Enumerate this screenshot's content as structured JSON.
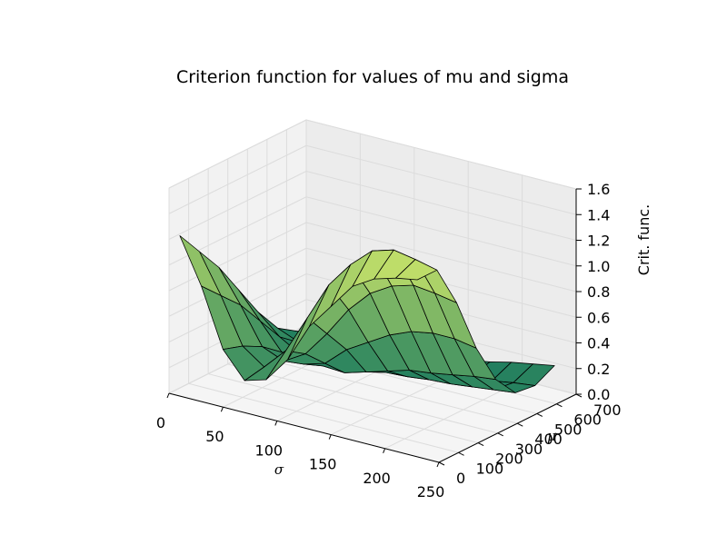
{
  "chart_data": {
    "type": "surface",
    "title": "Criterion function for values of mu and sigma",
    "xlabel": "σ",
    "ylabel": "μ",
    "zlabel": "Crit. func.",
    "xlim": [
      0,
      250
    ],
    "ylim": [
      0,
      700
    ],
    "zlim": [
      0,
      1.6
    ],
    "x_ticks": [
      "0",
      "50",
      "100",
      "150",
      "200",
      "250"
    ],
    "y_ticks": [
      "0",
      "100",
      "200",
      "300",
      "400",
      "500",
      "600",
      "700"
    ],
    "z_ticks": [
      "0.0",
      "0.2",
      "0.4",
      "0.6",
      "0.8",
      "1.0",
      "1.2",
      "1.4",
      "1.6"
    ],
    "grid": true,
    "colormap": "summer",
    "colormap_low": "#1a7a5e",
    "colormap_high": "#c6e26a",
    "edge_color": "#000000",
    "surface": {
      "sigma": [
        10,
        30,
        50,
        70,
        90,
        110,
        130,
        150,
        170,
        190,
        210,
        230
      ],
      "mu": [
        0,
        100,
        200,
        300,
        400,
        500,
        600,
        700
      ],
      "z": [
        [
          1.25,
          1.05,
          0.85,
          0.6,
          0.35,
          0.15,
          0.05,
          0.02
        ],
        [
          0.9,
          0.75,
          0.6,
          0.4,
          0.2,
          0.08,
          0.03,
          0.01
        ],
        [
          0.45,
          0.4,
          0.32,
          0.2,
          0.1,
          0.05,
          0.02,
          0.01
        ],
        [
          0.25,
          0.28,
          0.25,
          0.15,
          0.06,
          0.02,
          0.01,
          0.01
        ],
        [
          0.3,
          0.45,
          0.35,
          0.2,
          0.05,
          0.01,
          0.0,
          0.01
        ],
        [
          0.5,
          0.75,
          0.55,
          0.35,
          0.1,
          0.02,
          0.0,
          0.02
        ],
        [
          0.8,
          1.05,
          0.78,
          0.45,
          0.15,
          0.03,
          0.01,
          0.03
        ],
        [
          1.0,
          1.25,
          0.95,
          0.55,
          0.2,
          0.05,
          0.02,
          0.05
        ],
        [
          1.2,
          1.4,
          1.05,
          0.62,
          0.22,
          0.06,
          0.03,
          0.08
        ],
        [
          1.3,
          1.45,
          1.1,
          0.65,
          0.25,
          0.08,
          0.05,
          0.12
        ],
        [
          1.35,
          1.42,
          1.08,
          0.65,
          0.28,
          0.1,
          0.08,
          0.15
        ],
        [
          1.38,
          1.38,
          1.05,
          0.62,
          0.3,
          0.12,
          0.1,
          0.18
        ]
      ]
    }
  }
}
